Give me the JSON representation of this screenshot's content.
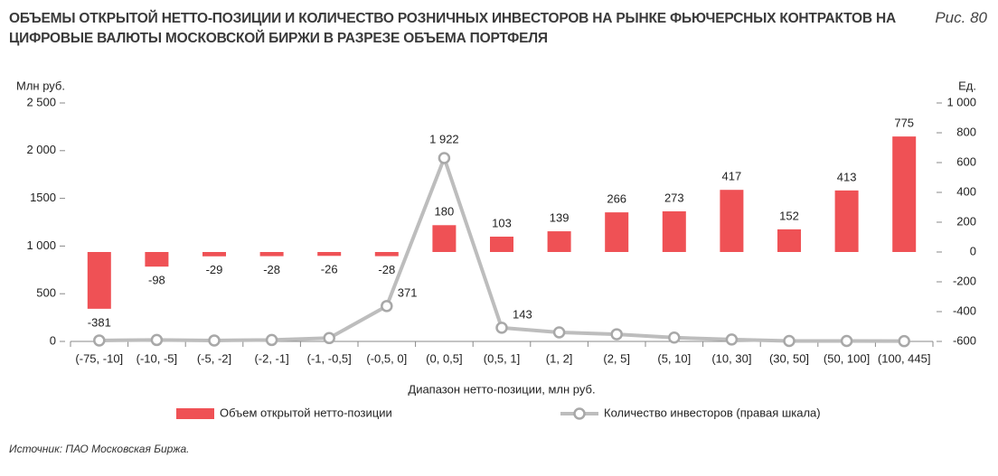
{
  "chart_data": {
    "type": "bar-line",
    "title": "ОБЪЕМЫ ОТКРЫТОЙ НЕТТО-ПОЗИЦИИ И КОЛИЧЕСТВО РОЗНИЧНЫХ ИНВЕСТОРОВ НА РЫНКЕ ФЬЮЧЕРСНЫХ КОНТРАКТОВ НА ЦИФРОВЫЕ ВАЛЮТЫ МОСКОВСКОЙ БИРЖИ В РАЗРЕЗЕ ОБЪЕМА ПОРТФЕЛЯ",
    "figure_label": "Рис. 80",
    "ylabel": "Млн руб.",
    "y2label": "Ед.",
    "xlabel": "Диапазон нетто-позиции, млн руб.",
    "source": "Источник: ПАО Московская Биржа.",
    "categories": [
      "(-75, -10]",
      "(-10, -5]",
      "(-5, -2]",
      "(-2, -1]",
      "(-1, -0,5]",
      "(-0,5, 0]",
      "(0, 0,5]",
      "(0,5, 1]",
      "(1, 2]",
      "(2, 5]",
      "(5, 10]",
      "(10, 30]",
      "(30, 50]",
      "(50, 100]",
      "(100, 445]"
    ],
    "series": [
      {
        "name": "Объем открытой нетто-позиции",
        "type": "bar",
        "axis": "y2",
        "color": "#ef5155",
        "values": [
          -381,
          -98,
          -29,
          -28,
          -26,
          -28,
          180,
          103,
          139,
          266,
          273,
          417,
          152,
          413,
          775
        ]
      },
      {
        "name": "Количество инвесторов (правая шкала)",
        "type": "line",
        "color": "#bdbdbd",
        "values": [
          10,
          15,
          10,
          15,
          35,
          371,
          1922,
          143,
          95,
          75,
          40,
          20,
          5,
          5,
          3
        ],
        "value_labels": [
          null,
          null,
          null,
          null,
          null,
          "371",
          "1 922",
          "143",
          null,
          null,
          null,
          null,
          null,
          null,
          null
        ]
      }
    ],
    "ylim": [
      0,
      2500
    ],
    "yticks": [
      0,
      500,
      {
        "value": 1000,
        "label": "1 000"
      },
      1500,
      {
        "value": 2000,
        "label": "2 000"
      },
      {
        "value": 2500,
        "label": "2 500"
      }
    ],
    "y2lim": [
      -600,
      1000
    ],
    "y2ticks": [
      -600,
      -400,
      -200,
      0,
      200,
      400,
      600,
      800,
      {
        "value": 1000,
        "label": "1 000"
      }
    ]
  }
}
